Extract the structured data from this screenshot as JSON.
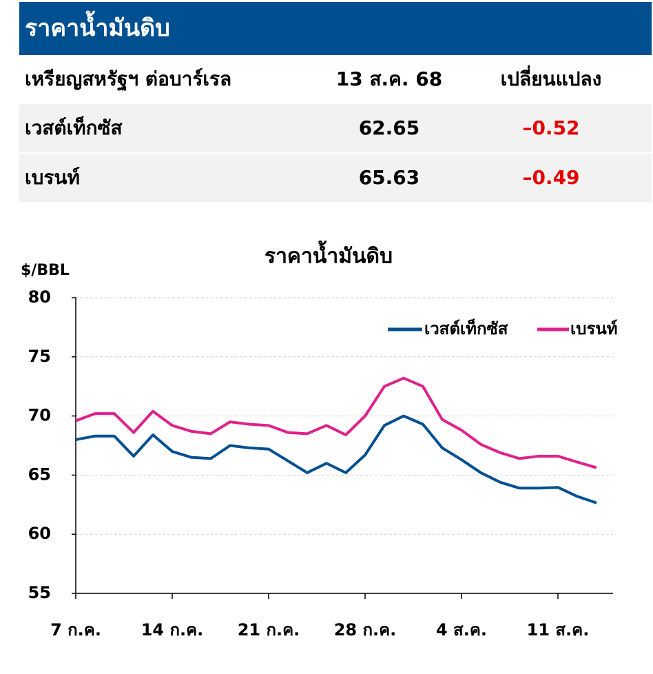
{
  "header": {
    "title": "ราคาน้ำมันดิบ"
  },
  "table": {
    "columns": [
      "เหรียญสหรัฐฯ ต่อบาร์เรล",
      "13 ส.ค. 68",
      "เปลี่ยนแปลง"
    ],
    "rows": [
      [
        "เวสต์เท็กซัส",
        62.65,
        "–0.52"
      ],
      [
        "เบรนท์",
        65.63,
        "–0.49"
      ]
    ]
  },
  "chart_data": {
    "type": "line",
    "title": "ราคาน้ำมันดิบ",
    "y_label": "$/BBL",
    "categories": [
      "7 ก.ค.",
      null,
      null,
      null,
      null,
      "14 ก.ค.",
      null,
      null,
      null,
      null,
      "21 ก.ค.",
      null,
      null,
      null,
      null,
      "28 ก.ค.",
      null,
      null,
      null,
      null,
      "4 ส.ค.",
      null,
      null,
      null,
      null,
      "11 ส.ค.",
      null,
      null
    ],
    "series": [
      {
        "name": "เวสต์เท็กซัส",
        "color": "#005091",
        "values": [
          68.0,
          68.3,
          68.3,
          66.6,
          68.4,
          67.0,
          66.5,
          66.4,
          67.5,
          67.3,
          67.2,
          66.2,
          65.2,
          66.0,
          65.2,
          66.7,
          69.2,
          70.0,
          69.3,
          67.3,
          66.3,
          65.2,
          64.4,
          63.9,
          63.9,
          63.96,
          63.2,
          62.65
        ]
      },
      {
        "name": "เบรนท์",
        "color": "#e0218a",
        "values": [
          69.6,
          70.2,
          70.2,
          68.6,
          70.4,
          69.2,
          68.7,
          68.5,
          69.5,
          69.3,
          69.2,
          68.6,
          68.5,
          69.2,
          68.4,
          70.0,
          72.5,
          73.2,
          72.5,
          69.7,
          68.8,
          67.6,
          66.9,
          66.4,
          66.6,
          66.6,
          66.1,
          65.63
        ]
      }
    ],
    "ylim": [
      55,
      80
    ],
    "yticks": [
      55,
      60,
      65,
      70,
      75,
      80
    ],
    "grid": true,
    "legend": "top-right"
  }
}
